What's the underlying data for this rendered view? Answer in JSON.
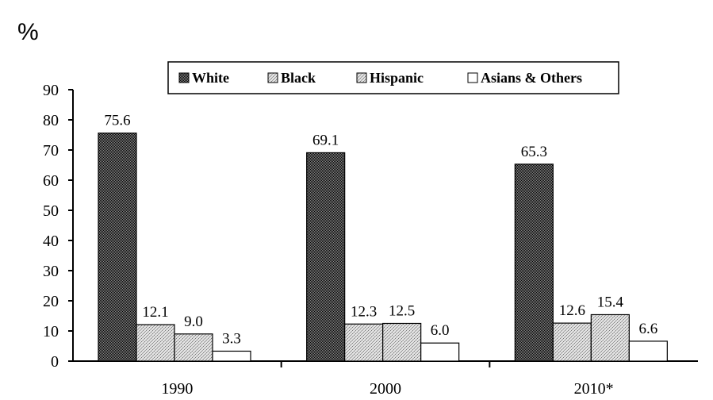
{
  "chart_data": {
    "type": "bar",
    "unit_label": "%",
    "categories": [
      "1990",
      "2000",
      "2010*"
    ],
    "series": [
      {
        "name": "White",
        "values": [
          75.6,
          69.1,
          65.3
        ],
        "labels": [
          "75.6",
          "69.1",
          "65.3"
        ],
        "color": "#4a4a4a",
        "pattern": "dark-dither"
      },
      {
        "name": "Black",
        "values": [
          12.1,
          12.3,
          12.6
        ],
        "labels": [
          "12.1",
          "12.3",
          "12.6"
        ],
        "color": "#c8c8c8",
        "pattern": "light-dither"
      },
      {
        "name": "Hispanic",
        "values": [
          9.0,
          12.5,
          15.4
        ],
        "labels": [
          "9.0",
          "12.5",
          "15.4"
        ],
        "color": "#c8c8c8",
        "pattern": "light-dither"
      },
      {
        "name": "Asians & Others",
        "values": [
          3.3,
          6.0,
          6.6
        ],
        "labels": [
          "3.3",
          "6.0",
          "6.6"
        ],
        "color": "#ffffff",
        "pattern": "none"
      }
    ],
    "ylim": [
      0,
      90
    ],
    "yticks": [
      0,
      10,
      20,
      30,
      40,
      50,
      60,
      70,
      80,
      90
    ],
    "legend_position": "top-center",
    "grid": false
  }
}
